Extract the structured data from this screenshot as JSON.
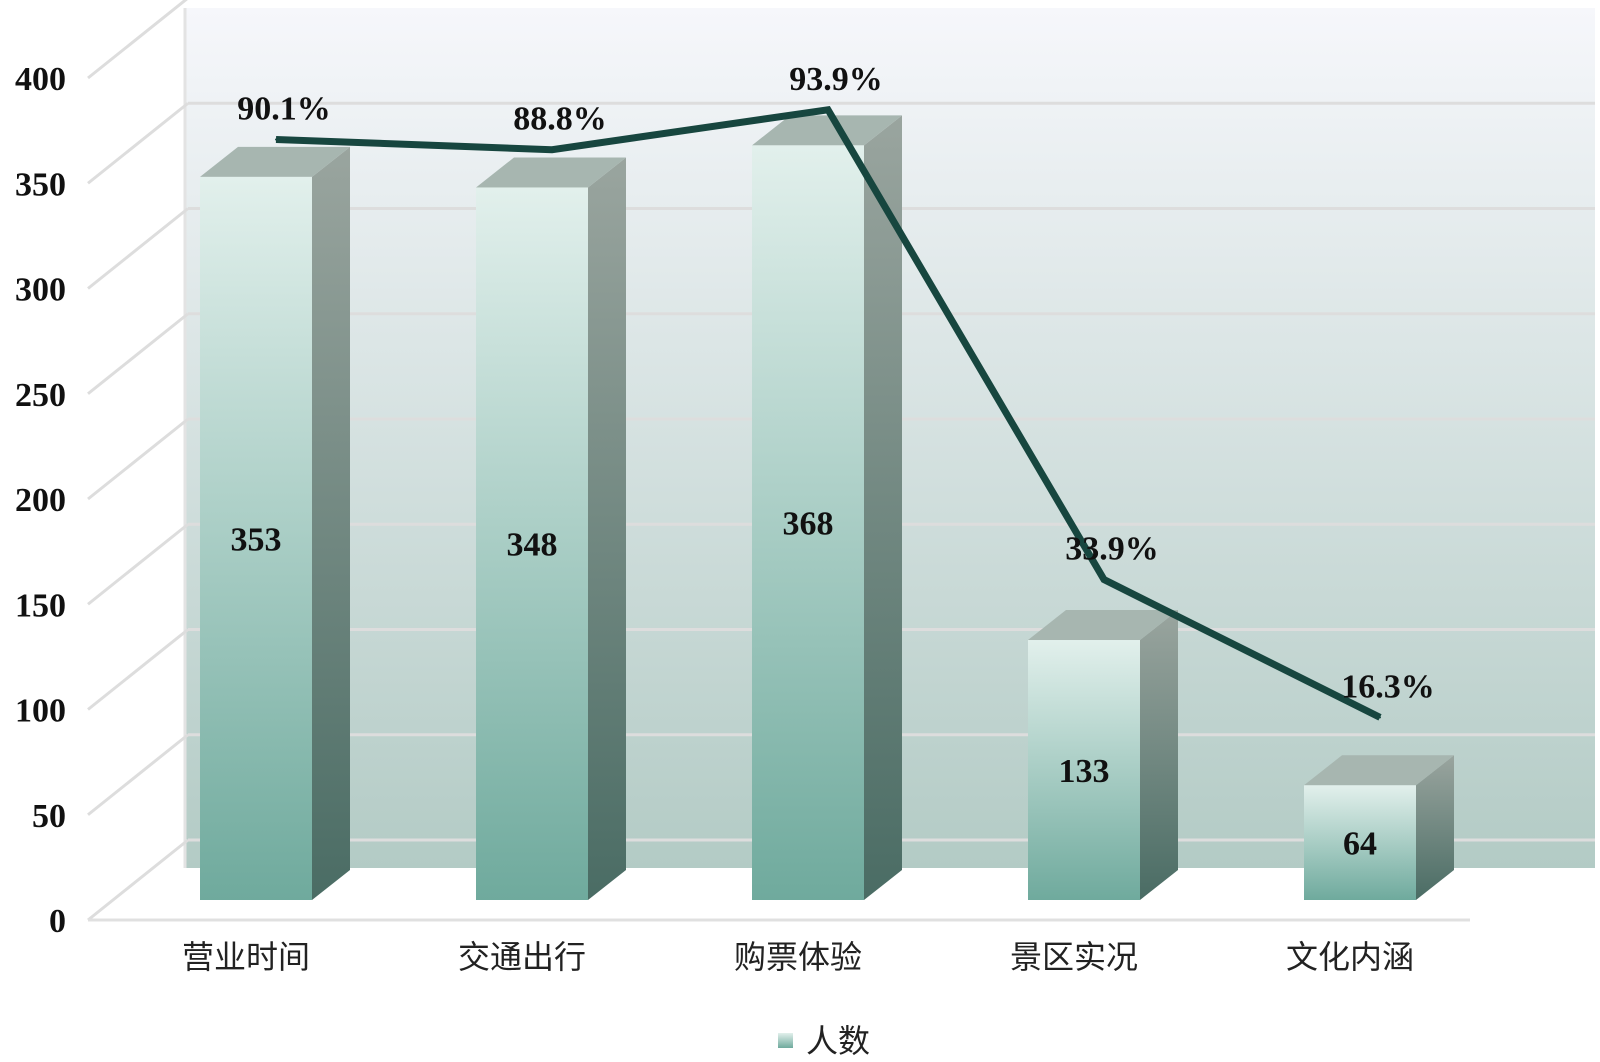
{
  "chart_data": {
    "type": "bar",
    "categories": [
      "营业时间",
      "交通出行",
      "购票体验",
      "景区实况",
      "文化内涵"
    ],
    "series": [
      {
        "name": "人数",
        "values": [
          353,
          348,
          368,
          133,
          64
        ]
      }
    ],
    "line_series": {
      "values": [
        90.1,
        88.8,
        93.9,
        33.9,
        16.3
      ],
      "labels": [
        "90.1%",
        "88.8%",
        "93.9%",
        "33.9%",
        "16.3%"
      ]
    },
    "value_labels": [
      "353",
      "348",
      "368",
      "133",
      "64"
    ],
    "yticks": [
      "0",
      "50",
      "100",
      "150",
      "200",
      "250",
      "300",
      "350",
      "400"
    ],
    "ylim": [
      0,
      400
    ],
    "grid": true,
    "legend": {
      "position": "bottom",
      "label": "人数"
    },
    "colors": {
      "bar_top": "#e2f0ec",
      "bar_bottom": "#6faa9d",
      "bar_side_top": "#9aa59f",
      "bar_side_bottom": "#4a6c64",
      "bar_cap": "#a7b6b0",
      "line": "#17463f",
      "wall_top": "#f6f7fb",
      "wall_bottom": "#b3cbc5",
      "grid": "#dddddd"
    }
  }
}
